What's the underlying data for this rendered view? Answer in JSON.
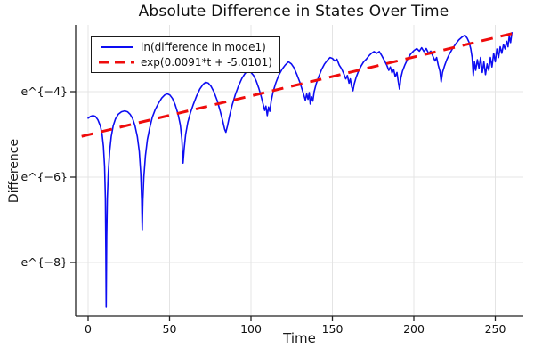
{
  "title": "Absolute Difference in States Over Time",
  "xlabel": "Time",
  "ylabel": "Difference",
  "legend": {
    "entries": [
      {
        "label": "ln(difference in mode1)",
        "color": "#0d0df2",
        "style": "solid"
      },
      {
        "label": "exp(0.0091*t + -5.0101)",
        "color": "#ef0c0c",
        "style": "dashed"
      }
    ]
  },
  "colors": {
    "background": "#ffffff",
    "grid": "#e4e4e4",
    "axis": "#222222",
    "text": "#111111",
    "series_blue": "#0d0df2",
    "series_red": "#ef0c0c"
  },
  "chart_data": {
    "type": "line",
    "title": "Absolute Difference in States Over Time",
    "xlabel": "Time",
    "ylabel": "Difference",
    "y_scale": "log (natural), tick labels shown as e^{k}",
    "xlim": [
      -7.6,
      267
    ],
    "ylim_ln": [
      -9.25,
      -2.44
    ],
    "x_ticks": [
      0,
      50,
      100,
      150,
      200,
      250
    ],
    "y_ticks": [
      {
        "v": -4,
        "label": "e^{−4}"
      },
      {
        "v": -6,
        "label": "e^{−6}"
      },
      {
        "v": -8,
        "label": "e^{−8}"
      }
    ],
    "grid": true,
    "legend_position": "top-left",
    "series": [
      {
        "name": "ln(difference in mode1)",
        "color": "#0d0df2",
        "style": "solid",
        "points": [
          [
            0,
            -4.62
          ],
          [
            1.5,
            -4.58
          ],
          [
            3,
            -4.56
          ],
          [
            4.5,
            -4.58
          ],
          [
            6,
            -4.66
          ],
          [
            7.5,
            -4.8
          ],
          [
            8.5,
            -4.98
          ],
          [
            9.4,
            -5.28
          ],
          [
            10.1,
            -5.75
          ],
          [
            10.6,
            -6.5
          ],
          [
            10.9,
            -7.7
          ],
          [
            11.1,
            -9.04
          ],
          [
            11.4,
            -7.4
          ],
          [
            11.8,
            -6.5
          ],
          [
            12.4,
            -5.9
          ],
          [
            13.2,
            -5.4
          ],
          [
            14.2,
            -5.05
          ],
          [
            15.4,
            -4.8
          ],
          [
            16.8,
            -4.64
          ],
          [
            18.5,
            -4.53
          ],
          [
            20.5,
            -4.47
          ],
          [
            22.5,
            -4.45
          ],
          [
            24.2,
            -4.47
          ],
          [
            25.8,
            -4.53
          ],
          [
            27.3,
            -4.63
          ],
          [
            28.8,
            -4.8
          ],
          [
            30.2,
            -5.05
          ],
          [
            31.4,
            -5.4
          ],
          [
            32.3,
            -5.9
          ],
          [
            32.9,
            -6.55
          ],
          [
            33.2,
            -7.23
          ],
          [
            33.6,
            -6.55
          ],
          [
            34.2,
            -6.0
          ],
          [
            35.2,
            -5.5
          ],
          [
            36.4,
            -5.12
          ],
          [
            37.8,
            -4.85
          ],
          [
            39.4,
            -4.6
          ],
          [
            41.2,
            -4.42
          ],
          [
            43.2,
            -4.27
          ],
          [
            45.2,
            -4.15
          ],
          [
            47,
            -4.08
          ],
          [
            48.6,
            -4.05
          ],
          [
            50.2,
            -4.08
          ],
          [
            51.8,
            -4.16
          ],
          [
            53.4,
            -4.3
          ],
          [
            55.2,
            -4.52
          ],
          [
            56.6,
            -4.78
          ],
          [
            57.6,
            -5.12
          ],
          [
            58.3,
            -5.67
          ],
          [
            59,
            -5.32
          ],
          [
            59.9,
            -5.0
          ],
          [
            61.2,
            -4.72
          ],
          [
            62.8,
            -4.5
          ],
          [
            64.6,
            -4.3
          ],
          [
            66.6,
            -4.1
          ],
          [
            68.6,
            -3.94
          ],
          [
            70.6,
            -3.83
          ],
          [
            72.2,
            -3.78
          ],
          [
            73.8,
            -3.8
          ],
          [
            75.4,
            -3.87
          ],
          [
            77.2,
            -4.0
          ],
          [
            79.2,
            -4.2
          ],
          [
            81,
            -4.44
          ],
          [
            82.6,
            -4.68
          ],
          [
            83.8,
            -4.88
          ],
          [
            84.6,
            -4.95
          ],
          [
            85.6,
            -4.8
          ],
          [
            86.8,
            -4.58
          ],
          [
            88.4,
            -4.32
          ],
          [
            90.4,
            -4.07
          ],
          [
            92.4,
            -3.86
          ],
          [
            94.4,
            -3.69
          ],
          [
            96.4,
            -3.57
          ],
          [
            98.2,
            -3.52
          ],
          [
            100,
            -3.55
          ],
          [
            101.6,
            -3.62
          ],
          [
            103.2,
            -3.75
          ],
          [
            104.8,
            -3.92
          ],
          [
            106.2,
            -4.1
          ],
          [
            107.4,
            -4.28
          ],
          [
            108.4,
            -4.44
          ],
          [
            109.2,
            -4.34
          ],
          [
            110,
            -4.56
          ],
          [
            110.8,
            -4.36
          ],
          [
            111.6,
            -4.46
          ],
          [
            112.4,
            -4.22
          ],
          [
            113.6,
            -4.0
          ],
          [
            115.2,
            -3.8
          ],
          [
            117,
            -3.62
          ],
          [
            119,
            -3.48
          ],
          [
            121,
            -3.38
          ],
          [
            123,
            -3.3
          ],
          [
            124.8,
            -3.35
          ],
          [
            126.4,
            -3.44
          ],
          [
            128.2,
            -3.6
          ],
          [
            130,
            -3.78
          ],
          [
            131.4,
            -3.95
          ],
          [
            132.6,
            -4.1
          ],
          [
            133.4,
            -4.2
          ],
          [
            134.2,
            -4.05
          ],
          [
            135,
            -4.18
          ],
          [
            135.8,
            -4.02
          ],
          [
            136.4,
            -4.29
          ],
          [
            137.2,
            -4.12
          ],
          [
            138,
            -4.22
          ],
          [
            138.8,
            -4.0
          ],
          [
            140,
            -3.82
          ],
          [
            141.6,
            -3.65
          ],
          [
            143.4,
            -3.48
          ],
          [
            145.2,
            -3.35
          ],
          [
            147,
            -3.26
          ],
          [
            148.6,
            -3.2
          ],
          [
            150,
            -3.22
          ],
          [
            151.4,
            -3.28
          ],
          [
            152.8,
            -3.24
          ],
          [
            154.2,
            -3.38
          ],
          [
            155.6,
            -3.46
          ],
          [
            157,
            -3.58
          ],
          [
            158.2,
            -3.7
          ],
          [
            159.2,
            -3.62
          ],
          [
            160.2,
            -3.8
          ],
          [
            161,
            -3.7
          ],
          [
            161.8,
            -3.88
          ],
          [
            162.6,
            -3.98
          ],
          [
            163.4,
            -3.82
          ],
          [
            164.6,
            -3.66
          ],
          [
            166,
            -3.52
          ],
          [
            167.6,
            -3.4
          ],
          [
            169.2,
            -3.3
          ],
          [
            170.8,
            -3.24
          ],
          [
            172.4,
            -3.16
          ],
          [
            174,
            -3.1
          ],
          [
            175.6,
            -3.06
          ],
          [
            177.2,
            -3.1
          ],
          [
            178.8,
            -3.06
          ],
          [
            180.4,
            -3.16
          ],
          [
            182,
            -3.28
          ],
          [
            183.4,
            -3.38
          ],
          [
            184.6,
            -3.5
          ],
          [
            185.6,
            -3.42
          ],
          [
            186.6,
            -3.56
          ],
          [
            187.6,
            -3.48
          ],
          [
            188.6,
            -3.65
          ],
          [
            189.6,
            -3.55
          ],
          [
            190.4,
            -3.75
          ],
          [
            191.2,
            -3.94
          ],
          [
            192,
            -3.68
          ],
          [
            193,
            -3.52
          ],
          [
            194.4,
            -3.38
          ],
          [
            196,
            -3.25
          ],
          [
            198,
            -3.12
          ],
          [
            200,
            -3.04
          ],
          [
            201.8,
            -2.99
          ],
          [
            203.4,
            -3.05
          ],
          [
            204.8,
            -2.97
          ],
          [
            206.2,
            -3.06
          ],
          [
            207.6,
            -2.99
          ],
          [
            209,
            -3.1
          ],
          [
            210.4,
            -3.05
          ],
          [
            211.8,
            -3.18
          ],
          [
            213,
            -3.28
          ],
          [
            214,
            -3.2
          ],
          [
            215,
            -3.38
          ],
          [
            216,
            -3.52
          ],
          [
            216.8,
            -3.77
          ],
          [
            217.6,
            -3.55
          ],
          [
            218.8,
            -3.4
          ],
          [
            220.2,
            -3.25
          ],
          [
            221.8,
            -3.12
          ],
          [
            223.6,
            -3.0
          ],
          [
            225.6,
            -2.89
          ],
          [
            227.6,
            -2.79
          ],
          [
            229.6,
            -2.72
          ],
          [
            231.4,
            -2.68
          ],
          [
            232.8,
            -2.75
          ],
          [
            234,
            -2.85
          ],
          [
            235,
            -3.0
          ],
          [
            235.8,
            -3.2
          ],
          [
            236.5,
            -3.62
          ],
          [
            237.2,
            -3.3
          ],
          [
            238,
            -3.5
          ],
          [
            239,
            -3.25
          ],
          [
            240,
            -3.45
          ],
          [
            241,
            -3.2
          ],
          [
            242,
            -3.55
          ],
          [
            243,
            -3.3
          ],
          [
            244,
            -3.6
          ],
          [
            245,
            -3.35
          ],
          [
            246,
            -3.5
          ],
          [
            247,
            -3.2
          ],
          [
            248,
            -3.42
          ],
          [
            249,
            -3.1
          ],
          [
            250,
            -3.3
          ],
          [
            251,
            -3.0
          ],
          [
            252,
            -3.2
          ],
          [
            253,
            -2.95
          ],
          [
            254,
            -3.1
          ],
          [
            255,
            -2.9
          ],
          [
            256,
            -3.0
          ],
          [
            257,
            -2.82
          ],
          [
            257.8,
            -2.95
          ],
          [
            258.6,
            -2.7
          ],
          [
            259.4,
            -2.85
          ],
          [
            260.2,
            -2.62
          ]
        ]
      },
      {
        "name": "exp(0.0091*t + -5.0101)",
        "color": "#ef0c0c",
        "style": "dashed",
        "fit": {
          "slope": 0.0091,
          "intercept": -5.0101,
          "t_start": -4,
          "t_end": 262
        }
      }
    ]
  }
}
